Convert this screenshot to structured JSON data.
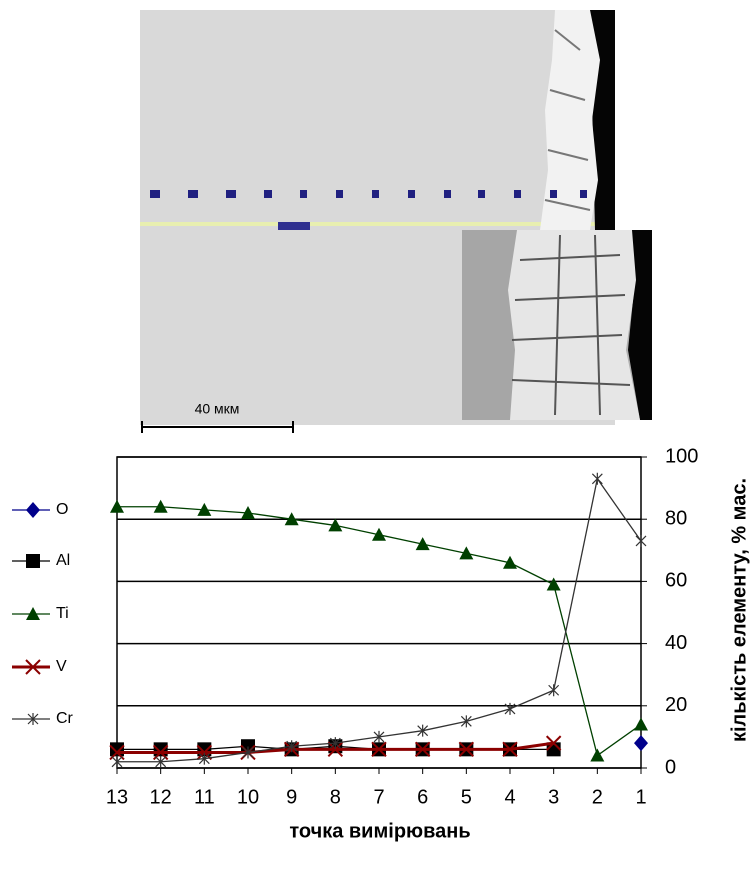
{
  "image": {
    "scale_label": "40 мкм"
  },
  "chart_data": {
    "type": "line",
    "x_label": "точка вимірювань",
    "y_label": "кількість елементу, % мас.",
    "categories": [
      "13",
      "12",
      "11",
      "10",
      "9",
      "8",
      "7",
      "6",
      "5",
      "4",
      "3",
      "2",
      "1"
    ],
    "ylim": [
      0,
      100
    ],
    "yticks": [
      0,
      20,
      40,
      60,
      80,
      100
    ],
    "grid": true,
    "y_axis_side": "right",
    "legend": "left",
    "series": [
      {
        "name": "O",
        "color": "#00008b",
        "marker": "diamond",
        "values": [
          null,
          null,
          null,
          null,
          null,
          null,
          null,
          null,
          null,
          null,
          null,
          null,
          8
        ]
      },
      {
        "name": "Al",
        "color": "#000000",
        "marker": "square",
        "values": [
          6,
          6,
          6,
          7,
          6,
          7,
          6,
          6,
          6,
          6,
          6,
          null,
          null
        ]
      },
      {
        "name": "Ti",
        "color": "#004000",
        "marker": "triangle",
        "values": [
          84,
          84,
          83,
          82,
          80,
          78,
          75,
          72,
          69,
          66,
          59,
          4,
          14
        ]
      },
      {
        "name": "V",
        "color": "#8b0000",
        "marker": "x",
        "values": [
          5,
          5,
          5,
          5,
          6,
          6,
          6,
          6,
          6,
          6,
          8,
          null,
          null
        ]
      },
      {
        "name": "Cr",
        "color": "#333333",
        "marker": "star",
        "values": [
          2,
          2,
          3,
          5,
          7,
          8,
          10,
          12,
          15,
          19,
          25,
          93,
          73
        ]
      }
    ]
  }
}
